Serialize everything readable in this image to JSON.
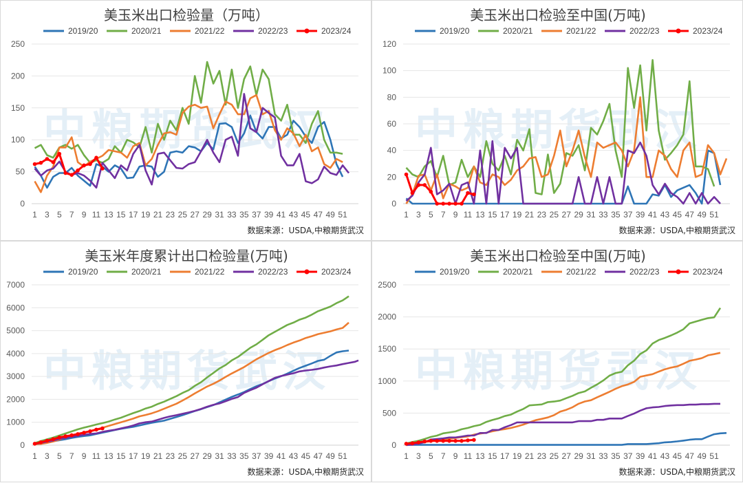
{
  "colors": {
    "2019/20": "#2e75b6",
    "2020/21": "#70ad47",
    "2021/22": "#ed7d31",
    "2022/23": "#7030a0",
    "2023/24": "#ff0000"
  },
  "legend_labels": [
    "2019/20",
    "2020/21",
    "2021/22",
    "2022/23",
    "2023/24"
  ],
  "source_text": "数据来源：USDA,中粮期货武汉",
  "watermark_text": "中粮期货武汉",
  "chart_data": [
    {
      "type": "line",
      "title": "美玉米出口检验量（万吨）",
      "xlabel": "",
      "ylabel": "",
      "ylim": [
        0,
        250
      ],
      "yticks": [
        0,
        50,
        100,
        150,
        200,
        250
      ],
      "xticks": [
        1,
        3,
        5,
        7,
        9,
        11,
        13,
        15,
        17,
        19,
        21,
        23,
        25,
        27,
        29,
        31,
        33,
        35,
        37,
        39,
        41,
        43,
        45,
        47,
        49,
        51
      ],
      "grid": true,
      "legend": "top",
      "series": [
        {
          "name": "2019/20",
          "values": [
            58,
            44,
            25,
            42,
            48,
            48,
            56,
            44,
            36,
            28,
            62,
            58,
            50,
            60,
            55,
            40,
            41,
            58,
            60,
            58,
            42,
            50,
            80,
            82,
            80,
            90,
            88,
            82,
            95,
            85,
            125,
            126,
            120,
            95,
            110,
            138,
            112,
            102,
            120,
            120,
            102,
            108,
            130,
            120,
            105,
            95,
            120,
            128,
            100,
            62,
            42
          ]
        },
        {
          "name": "2020/21",
          "values": [
            87,
            92,
            76,
            72,
            88,
            92,
            86,
            92,
            76,
            64,
            68,
            64,
            70,
            90,
            80,
            100,
            96,
            88,
            120,
            80,
            125,
            100,
            130,
            115,
            150,
            125,
            200,
            158,
            222,
            188,
            208,
            155,
            210,
            150,
            195,
            215,
            170,
            210,
            195,
            140,
            130,
            155,
            108,
            108,
            95,
            125,
            145,
            100,
            80,
            80,
            78
          ]
        },
        {
          "name": "2021/22",
          "values": [
            35,
            18,
            44,
            58,
            88,
            88,
            104,
            65,
            58,
            66,
            70,
            75,
            84,
            82,
            80,
            72,
            90,
            95,
            60,
            70,
            92,
            110,
            112,
            108,
            142,
            152,
            155,
            150,
            152,
            118,
            140,
            160,
            155,
            140,
            140,
            165,
            170,
            140,
            145,
            115,
            100,
            118,
            110,
            90,
            108,
            82,
            88,
            62,
            56,
            70,
            65
          ]
        },
        {
          "name": "2022/23",
          "values": [
            55,
            44,
            52,
            55,
            66,
            50,
            45,
            48,
            44,
            36,
            25,
            64,
            52,
            40,
            60,
            52,
            78,
            92,
            52,
            30,
            78,
            80,
            68,
            56,
            55,
            62,
            65,
            82,
            100,
            80,
            65,
            100,
            105,
            75,
            172,
            118,
            112,
            150,
            142,
            135,
            75,
            60,
            60,
            78,
            35,
            32,
            38,
            58,
            48,
            45,
            60,
            48
          ]
        },
        {
          "name": "2023/24",
          "values": [
            62,
            64,
            70,
            65,
            78,
            48,
            45,
            52,
            60,
            62,
            72,
            55
          ]
        }
      ]
    },
    {
      "type": "line",
      "title": "美玉米出口检验至中国(万吨)",
      "xlabel": "",
      "ylabel": "",
      "ylim": [
        0,
        120
      ],
      "yticks": [
        0,
        20,
        40,
        60,
        80,
        100,
        120
      ],
      "xticks": [
        1,
        3,
        5,
        7,
        9,
        11,
        13,
        15,
        17,
        19,
        21,
        23,
        25,
        27,
        29,
        31,
        33,
        35,
        37,
        39,
        41,
        43,
        45,
        47,
        49,
        51
      ],
      "grid": true,
      "legend": "top",
      "series": [
        {
          "name": "2019/20",
          "values": [
            4,
            0,
            0,
            0,
            0,
            0,
            0,
            0,
            0,
            0,
            0,
            0,
            0,
            0,
            0,
            0,
            0,
            0,
            0,
            0,
            0,
            0,
            0,
            0,
            0,
            0,
            0,
            0,
            0,
            0,
            0,
            0,
            0,
            0,
            0,
            0,
            13,
            0,
            0,
            0,
            7,
            6,
            14,
            5,
            10,
            12,
            14,
            8,
            0,
            40,
            38,
            14
          ]
        },
        {
          "name": "2020/21",
          "values": [
            27,
            22,
            20,
            28,
            32,
            20,
            36,
            14,
            16,
            33,
            20,
            28,
            20,
            47,
            30,
            25,
            36,
            22,
            48,
            40,
            56,
            8,
            7,
            37,
            8,
            15,
            38,
            36,
            44,
            25,
            57,
            52,
            62,
            75,
            40,
            20,
            102,
            72,
            104,
            55,
            108,
            55,
            33,
            38,
            44,
            52,
            92,
            28,
            28,
            26,
            13
          ]
        },
        {
          "name": "2021/22",
          "values": [
            0,
            7,
            21,
            22,
            10,
            22,
            4,
            15,
            13,
            10,
            12,
            28,
            16,
            14,
            22,
            20,
            14,
            18,
            25,
            28,
            34,
            35,
            20,
            22,
            36,
            55,
            28,
            40,
            55,
            35,
            20,
            46,
            42,
            44,
            46,
            40,
            28,
            40,
            80,
            20,
            20,
            40,
            36,
            26,
            20,
            40,
            46,
            20,
            22,
            44,
            38,
            22,
            34
          ]
        },
        {
          "name": "2022/23",
          "values": [
            2,
            6,
            16,
            22,
            42,
            7,
            10,
            15,
            0,
            14,
            16,
            0,
            40,
            0,
            47,
            0,
            42,
            34,
            42,
            0,
            0,
            0,
            0,
            0,
            0,
            0,
            0,
            0,
            20,
            0,
            0,
            20,
            0,
            20,
            0,
            0,
            40,
            38,
            46,
            36,
            14,
            7,
            15,
            8,
            5,
            0,
            8,
            0,
            8,
            0,
            5,
            0
          ]
        },
        {
          "name": "2023/24",
          "values": [
            22,
            8,
            14,
            14,
            9,
            0,
            0,
            0,
            0,
            0,
            8,
            7
          ]
        }
      ]
    },
    {
      "type": "line",
      "title": "美玉米年度累计出口检验量(万吨)",
      "xlabel": "",
      "ylabel": "",
      "ylim": [
        0,
        7000
      ],
      "yticks": [
        0,
        1000,
        2000,
        3000,
        4000,
        5000,
        6000,
        7000
      ],
      "xticks": [
        1,
        3,
        5,
        7,
        9,
        11,
        13,
        15,
        17,
        19,
        21,
        23,
        25,
        27,
        29,
        31,
        33,
        35,
        37,
        39,
        41,
        43,
        45,
        47,
        49,
        51
      ],
      "grid": true,
      "legend": "top",
      "series": [
        {
          "name": "2019/20",
          "values": [
            58,
            100,
            130,
            170,
            215,
            260,
            315,
            360,
            400,
            430,
            490,
            545,
            600,
            660,
            715,
            760,
            800,
            860,
            920,
            975,
            1020,
            1070,
            1150,
            1230,
            1310,
            1400,
            1490,
            1570,
            1660,
            1750,
            1870,
            1990,
            2110,
            2210,
            2320,
            2450,
            2570,
            2670,
            2790,
            2910,
            3010,
            3120,
            3250,
            3370,
            3470,
            3570,
            3680,
            3730,
            3900,
            4050,
            4100,
            4130
          ]
        },
        {
          "name": "2020/21",
          "values": [
            87,
            180,
            255,
            330,
            420,
            510,
            600,
            690,
            765,
            830,
            900,
            960,
            1030,
            1120,
            1200,
            1300,
            1400,
            1490,
            1600,
            1680,
            1800,
            1900,
            2020,
            2140,
            2280,
            2400,
            2590,
            2750,
            2960,
            3150,
            3350,
            3500,
            3700,
            3850,
            4050,
            4250,
            4400,
            4600,
            4800,
            4950,
            5100,
            5250,
            5350,
            5480,
            5570,
            5700,
            5850,
            5950,
            6050,
            6200,
            6320,
            6500
          ]
        },
        {
          "name": "2021/22",
          "values": [
            35,
            55,
            100,
            160,
            240,
            330,
            430,
            500,
            560,
            620,
            690,
            760,
            840,
            920,
            1000,
            1080,
            1160,
            1260,
            1320,
            1390,
            1480,
            1590,
            1700,
            1810,
            1950,
            2100,
            2260,
            2410,
            2560,
            2680,
            2820,
            2980,
            3130,
            3270,
            3410,
            3580,
            3750,
            3890,
            4030,
            4150,
            4250,
            4370,
            4480,
            4570,
            4680,
            4760,
            4850,
            4910,
            4970,
            5050,
            5120,
            5350
          ]
        },
        {
          "name": "2022/23",
          "values": [
            55,
            100,
            150,
            200,
            270,
            320,
            365,
            410,
            450,
            490,
            515,
            580,
            630,
            670,
            730,
            790,
            860,
            950,
            1000,
            1030,
            1110,
            1190,
            1260,
            1310,
            1370,
            1430,
            1500,
            1580,
            1680,
            1760,
            1820,
            1920,
            2020,
            2100,
            2280,
            2400,
            2510,
            2660,
            2800,
            2940,
            3020,
            3080,
            3140,
            3220,
            3260,
            3290,
            3330,
            3390,
            3440,
            3480,
            3540,
            3590,
            3640,
            3700
          ]
        },
        {
          "name": "2023/24",
          "values": [
            62,
            126,
            196,
            261,
            339,
            387,
            432,
            484,
            544,
            606,
            678,
            733
          ]
        }
      ]
    },
    {
      "type": "line",
      "title": "美玉米出口检验至中国(万吨)",
      "xlabel": "",
      "ylabel": "",
      "ylim": [
        0,
        2500
      ],
      "yticks": [
        0,
        500,
        1000,
        1500,
        2000,
        2500
      ],
      "xticks": [
        1,
        3,
        5,
        7,
        9,
        11,
        13,
        15,
        17,
        19,
        21,
        23,
        25,
        27,
        29,
        31,
        33,
        35,
        37,
        39,
        41,
        43,
        45,
        47,
        49,
        51
      ],
      "grid": true,
      "legend": "top",
      "series": [
        {
          "name": "2019/20",
          "values": [
            4,
            4,
            4,
            4,
            4,
            4,
            4,
            4,
            4,
            4,
            4,
            4,
            4,
            4,
            4,
            4,
            4,
            4,
            4,
            4,
            4,
            4,
            4,
            4,
            4,
            4,
            4,
            4,
            4,
            4,
            4,
            4,
            4,
            4,
            4,
            4,
            17,
            17,
            17,
            17,
            24,
            30,
            44,
            49,
            59,
            71,
            85,
            93,
            93,
            133,
            171,
            185,
            190
          ]
        },
        {
          "name": "2020/21",
          "values": [
            27,
            49,
            69,
            97,
            129,
            149,
            185,
            199,
            215,
            248,
            268,
            296,
            316,
            363,
            393,
            418,
            454,
            476,
            524,
            564,
            620,
            628,
            635,
            672,
            680,
            695,
            733,
            769,
            813,
            838,
            895,
            947,
            1009,
            1084,
            1124,
            1144,
            1246,
            1318,
            1422,
            1477,
            1585,
            1640,
            1673,
            1711,
            1755,
            1807,
            1899,
            1927,
            1955,
            1981,
            1994,
            2140
          ]
        },
        {
          "name": "2021/22",
          "values": [
            0,
            7,
            28,
            50,
            60,
            82,
            86,
            101,
            114,
            124,
            136,
            164,
            180,
            194,
            216,
            236,
            250,
            268,
            293,
            321,
            355,
            390,
            410,
            432,
            468,
            523,
            551,
            591,
            646,
            681,
            701,
            747,
            789,
            833,
            879,
            919,
            947,
            987,
            1067,
            1087,
            1107,
            1147,
            1183,
            1209,
            1229,
            1269,
            1315,
            1335,
            1357,
            1401,
            1420,
            1440
          ]
        },
        {
          "name": "2022/23",
          "values": [
            2,
            8,
            24,
            46,
            88,
            95,
            105,
            120,
            120,
            134,
            150,
            150,
            190,
            190,
            237,
            237,
            279,
            313,
            355,
            355,
            355,
            355,
            355,
            355,
            355,
            355,
            355,
            355,
            375,
            375,
            375,
            395,
            395,
            415,
            415,
            415,
            455,
            493,
            539,
            575,
            589,
            596,
            611,
            619,
            624,
            624,
            632,
            632,
            640,
            640,
            645,
            645
          ]
        },
        {
          "name": "2023/24",
          "values": [
            22,
            30,
            44,
            58,
            67,
            67,
            67,
            67,
            67,
            67,
            75,
            82
          ]
        }
      ]
    }
  ]
}
